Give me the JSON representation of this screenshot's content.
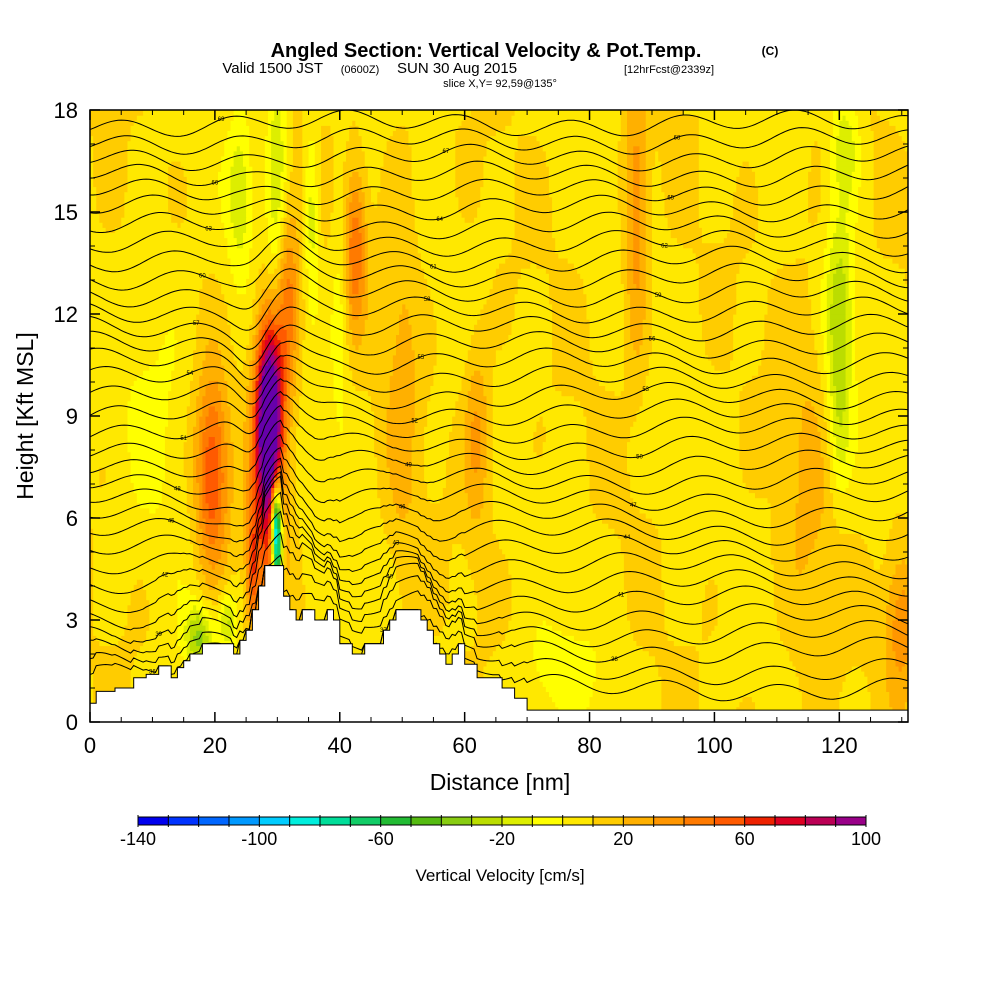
{
  "header": {
    "title": "Angled Section: Vertical Velocity & Pot.Temp.",
    "title_unit": "(C)",
    "valid_prefix": "Valid 1500 JST",
    "valid_utc": "(0600Z)",
    "valid_date": "SUN 30 Aug 2015",
    "forecast": "[12hrFcst@2339z]",
    "slice": "slice X,Y= 92,59@135°"
  },
  "chart_data": {
    "type": "heatmap",
    "xlabel": "Distance [nm]",
    "ylabel": "Height [Kft MSL]",
    "xlim": [
      0,
      131
    ],
    "ylim": [
      0,
      18
    ],
    "x_ticks": [
      "0",
      "20",
      "40",
      "60",
      "80",
      "100",
      "120"
    ],
    "y_ticks": [
      "0",
      "3",
      "6",
      "9",
      "12",
      "15",
      "18"
    ],
    "colorbar": {
      "label": "Vertical Velocity [cm/s]",
      "range": [
        -140,
        100
      ],
      "step": 10,
      "tick_labels": [
        "-140",
        "-100",
        "-60",
        "-20",
        "20",
        "60",
        "100"
      ],
      "colors": [
        "#0000ee",
        "#0033ff",
        "#0066ff",
        "#0099ff",
        "#00ccff",
        "#00eedd",
        "#00dd99",
        "#11cc66",
        "#22bb33",
        "#55bb11",
        "#88cc11",
        "#bbdd00",
        "#ddee00",
        "#ffff00",
        "#ffe800",
        "#ffcc00",
        "#ffb000",
        "#ff9600",
        "#ff7a00",
        "#ff5a00",
        "#ee2200",
        "#dd0022",
        "#bb0055",
        "#990088",
        "#6600aa"
      ]
    },
    "terrain_profile": [
      [
        0,
        0.55
      ],
      [
        1,
        0.9
      ],
      [
        4,
        1.0
      ],
      [
        7,
        1.3
      ],
      [
        9,
        1.4
      ],
      [
        11,
        1.65
      ],
      [
        13,
        1.3
      ],
      [
        14,
        1.6
      ],
      [
        15,
        1.8
      ],
      [
        16,
        2.0
      ],
      [
        18,
        2.3
      ],
      [
        20,
        2.3
      ],
      [
        22,
        2.3
      ],
      [
        23,
        2.0
      ],
      [
        24,
        2.4
      ],
      [
        25,
        2.7
      ],
      [
        26,
        3.3
      ],
      [
        27,
        4.0
      ],
      [
        28,
        4.6
      ],
      [
        30,
        4.6
      ],
      [
        31,
        3.7
      ],
      [
        32,
        3.3
      ],
      [
        33,
        3.0
      ],
      [
        34,
        3.3
      ],
      [
        35,
        3.3
      ],
      [
        36,
        3.0
      ],
      [
        37,
        3.0
      ],
      [
        38,
        3.3
      ],
      [
        39,
        3.0
      ],
      [
        40,
        2.3
      ],
      [
        41,
        2.3
      ],
      [
        42,
        2.0
      ],
      [
        43,
        2.0
      ],
      [
        44,
        2.3
      ],
      [
        45,
        2.3
      ],
      [
        46,
        2.3
      ],
      [
        47,
        2.7
      ],
      [
        48,
        3.0
      ],
      [
        49,
        3.3
      ],
      [
        52,
        3.3
      ],
      [
        53,
        3.0
      ],
      [
        54,
        2.7
      ],
      [
        55,
        2.3
      ],
      [
        56,
        2.0
      ],
      [
        57,
        1.7
      ],
      [
        58,
        2.0
      ],
      [
        59,
        2.3
      ],
      [
        60,
        1.7
      ],
      [
        62,
        1.3
      ],
      [
        64,
        1.3
      ],
      [
        66,
        1.0
      ],
      [
        68,
        0.7
      ],
      [
        70,
        0.35
      ],
      [
        131,
        0.35
      ]
    ],
    "theta_levels": [
      {
        "value": "36",
        "base": 1.0
      },
      {
        "value": "37",
        "base": 1.5
      },
      {
        "value": "38",
        "base": 2.1
      },
      {
        "value": "39",
        "base": 2.6
      },
      {
        "value": "40",
        "base": 3.1
      },
      {
        "value": "41",
        "base": 3.6
      },
      {
        "value": "42",
        "base": 4.1
      },
      {
        "value": "43",
        "base": 4.6
      },
      {
        "value": "44",
        "base": 5.1
      },
      {
        "value": "45",
        "base": 5.6
      },
      {
        "value": "46",
        "base": 6.1
      },
      {
        "value": "47",
        "base": 6.6
      },
      {
        "value": "48",
        "base": 7.1
      },
      {
        "value": "49",
        "base": 7.6
      },
      {
        "value": "50",
        "base": 8.1
      },
      {
        "value": "51",
        "base": 8.6
      },
      {
        "value": "52",
        "base": 9.1
      },
      {
        "value": "53",
        "base": 9.6
      },
      {
        "value": "54",
        "base": 10.1
      },
      {
        "value": "55",
        "base": 10.6
      },
      {
        "value": "56",
        "base": 11.1
      },
      {
        "value": "57",
        "base": 11.6
      },
      {
        "value": "58",
        "base": 12.1
      },
      {
        "value": "59",
        "base": 12.6
      },
      {
        "value": "60",
        "base": 13.1
      },
      {
        "value": "61",
        "base": 13.6
      },
      {
        "value": "62",
        "base": 14.1
      },
      {
        "value": "63",
        "base": 14.6
      },
      {
        "value": "64",
        "base": 15.1
      },
      {
        "value": "65",
        "base": 15.6
      },
      {
        "value": "66",
        "base": 16.1
      },
      {
        "value": "67",
        "base": 16.6
      },
      {
        "value": "68",
        "base": 17.1
      },
      {
        "value": "69",
        "base": 17.6
      }
    ],
    "updrafts": [
      {
        "x": 28.8,
        "y": 9.2,
        "sx": 1.4,
        "sy": 1.8,
        "v": 95
      },
      {
        "x": 28.5,
        "y": 7.3,
        "sx": 1.8,
        "sy": 2.8,
        "v": 60
      },
      {
        "x": 19.5,
        "y": 7.3,
        "sx": 1.8,
        "sy": 2.0,
        "v": 52
      },
      {
        "x": 31.5,
        "y": 12.5,
        "sx": 1.4,
        "sy": 2.2,
        "v": 40
      },
      {
        "x": 42.5,
        "y": 14.0,
        "sx": 1.2,
        "sy": 1.6,
        "v": 40
      },
      {
        "x": 87.5,
        "y": 15.0,
        "sx": 1.3,
        "sy": 3.0,
        "v": 30
      },
      {
        "x": 62.0,
        "y": 8.5,
        "sx": 1.5,
        "sy": 2.0,
        "v": 25
      },
      {
        "x": 130.0,
        "y": 3.0,
        "sx": 2.0,
        "sy": 1.6,
        "v": 30
      },
      {
        "x": 26.0,
        "y": 4.5,
        "sx": 0.7,
        "sy": 1.2,
        "v": 40
      },
      {
        "x": 50.0,
        "y": 10.0,
        "sx": 2.0,
        "sy": 5.0,
        "v": 15
      },
      {
        "x": 115.0,
        "y": 7.0,
        "sx": 3.0,
        "sy": 5.0,
        "v": 12
      }
    ],
    "downdrafts": [
      {
        "x": 30.0,
        "y": 5.0,
        "sx": 0.6,
        "sy": 1.2,
        "v": -100
      },
      {
        "x": 29.7,
        "y": 6.0,
        "sx": 0.5,
        "sy": 0.8,
        "v": -70
      },
      {
        "x": 17.5,
        "y": 2.5,
        "sx": 1.6,
        "sy": 0.7,
        "v": -40
      },
      {
        "x": 22.0,
        "y": 3.0,
        "sx": 1.0,
        "sy": 0.6,
        "v": -30
      },
      {
        "x": 30.0,
        "y": 15.5,
        "sx": 1.2,
        "sy": 3.5,
        "v": -30
      },
      {
        "x": 24.0,
        "y": 15.5,
        "sx": 1.4,
        "sy": 1.6,
        "v": -25
      },
      {
        "x": 35.5,
        "y": 15.0,
        "sx": 0.8,
        "sy": 1.8,
        "v": -25
      },
      {
        "x": 120.0,
        "y": 12.0,
        "sx": 1.6,
        "sy": 2.2,
        "v": -35
      },
      {
        "x": 121.0,
        "y": 17.0,
        "sx": 1.6,
        "sy": 1.2,
        "v": -25
      },
      {
        "x": 120.0,
        "y": 8.5,
        "sx": 1.2,
        "sy": 1.5,
        "v": -18
      },
      {
        "x": 40.0,
        "y": 12.0,
        "sx": 1.0,
        "sy": 2.5,
        "v": -15
      },
      {
        "x": 75.0,
        "y": 1.5,
        "sx": 5.0,
        "sy": 1.0,
        "v": -12
      },
      {
        "x": 11.0,
        "y": 10.0,
        "sx": 4.0,
        "sy": 3.0,
        "v": -10
      }
    ],
    "wave_center": 29,
    "wave_amplitude": 1.1
  }
}
